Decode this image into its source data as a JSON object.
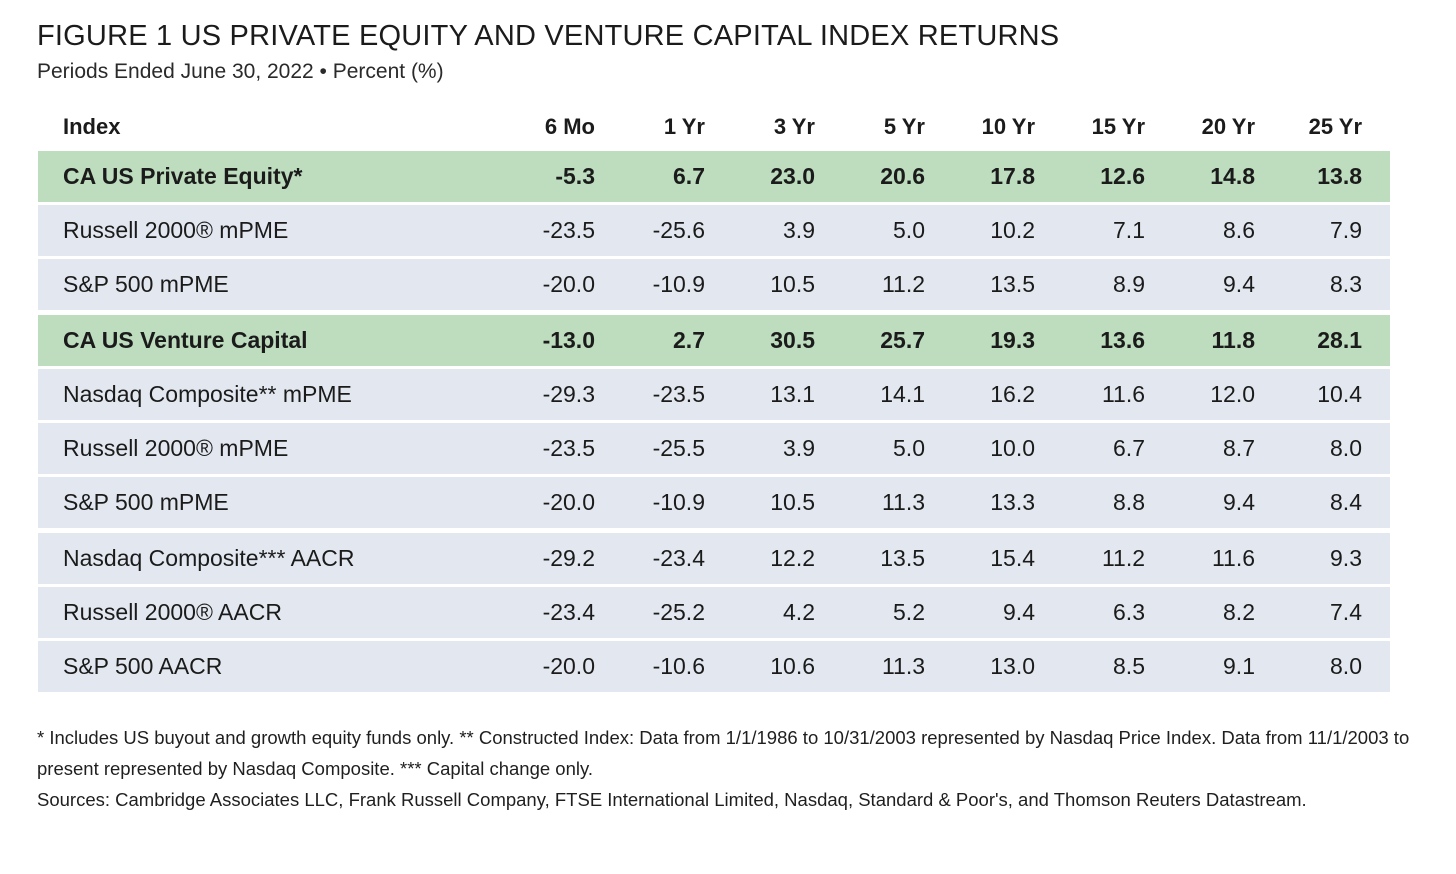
{
  "header": {
    "title": "FIGURE 1  US PRIVATE EQUITY AND VENTURE CAPITAL INDEX RETURNS",
    "subtitle": "Periods Ended June 30, 2022 • Percent (%)"
  },
  "table": {
    "columns": [
      "Index",
      "6 Mo",
      "1 Yr",
      "3 Yr",
      "5 Yr",
      "10 Yr",
      "15 Yr",
      "20 Yr",
      "25 Yr"
    ],
    "rows": [
      {
        "name": "CA US Private Equity*",
        "values": [
          "-5.3",
          "6.7",
          "23.0",
          "20.6",
          "17.8",
          "12.6",
          "14.8",
          "13.8"
        ]
      },
      {
        "name": "Russell 2000® mPME",
        "values": [
          "-23.5",
          "-25.6",
          "3.9",
          "5.0",
          "10.2",
          "7.1",
          "8.6",
          "7.9"
        ]
      },
      {
        "name": "S&P 500 mPME",
        "values": [
          "-20.0",
          "-10.9",
          "10.5",
          "11.2",
          "13.5",
          "8.9",
          "9.4",
          "8.3"
        ]
      },
      {
        "name": "CA US Venture Capital",
        "values": [
          "-13.0",
          "2.7",
          "30.5",
          "25.7",
          "19.3",
          "13.6",
          "11.8",
          "28.1"
        ]
      },
      {
        "name": "Nasdaq Composite** mPME",
        "values": [
          "-29.3",
          "-23.5",
          "13.1",
          "14.1",
          "16.2",
          "11.6",
          "12.0",
          "10.4"
        ]
      },
      {
        "name": "Russell 2000® mPME",
        "values": [
          "-23.5",
          "-25.5",
          "3.9",
          "5.0",
          "10.0",
          "6.7",
          "8.7",
          "8.0"
        ]
      },
      {
        "name": "S&P 500 mPME",
        "values": [
          "-20.0",
          "-10.9",
          "10.5",
          "11.3",
          "13.3",
          "8.8",
          "9.4",
          "8.4"
        ]
      },
      {
        "name": "Nasdaq Composite*** AACR",
        "values": [
          "-29.2",
          "-23.4",
          "12.2",
          "13.5",
          "15.4",
          "11.2",
          "11.6",
          "9.3"
        ]
      },
      {
        "name": "Russell 2000® AACR",
        "values": [
          "-23.4",
          "-25.2",
          "4.2",
          "5.2",
          "9.4",
          "6.3",
          "8.2",
          "7.4"
        ]
      },
      {
        "name": "S&P 500 AACR",
        "values": [
          "-20.0",
          "-10.6",
          "10.6",
          "11.3",
          "13.0",
          "8.5",
          "9.1",
          "8.0"
        ]
      }
    ]
  },
  "notes": {
    "footnote": "* Includes US buyout and growth equity funds only. ** Constructed Index: Data from 1/1/1986 to 10/31/2003 represented by Nasdaq Price Index. Data from 11/1/2003 to present represented by Nasdaq Composite. *** Capital change only.",
    "sources": "Sources: Cambridge Associates LLC, Frank Russell Company, FTSE International Limited, Nasdaq, Standard & Poor's, and Thomson Reuters Datastream."
  },
  "colors": {
    "highlight_row": "#bdddbe",
    "normal_row": "#e3e8f0"
  }
}
